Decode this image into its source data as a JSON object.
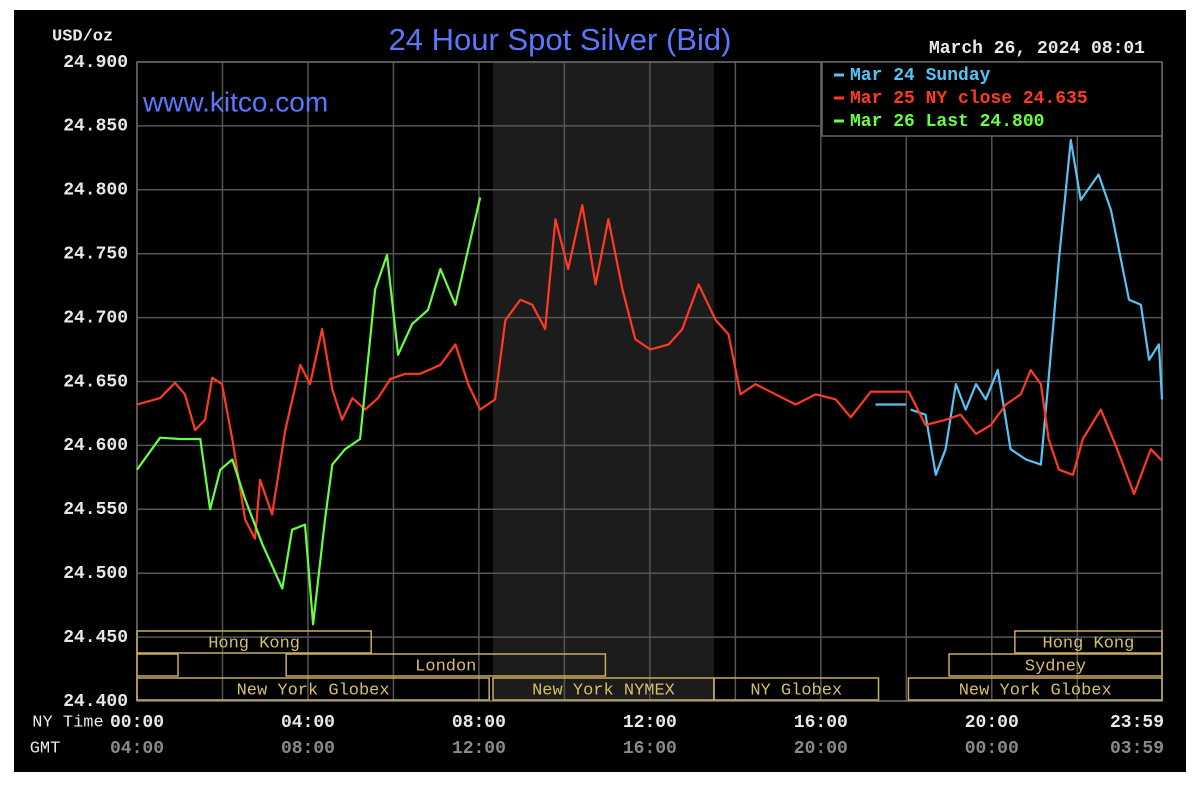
{
  "chart_data": {
    "type": "line",
    "title": "24 Hour Spot Silver (Bid)",
    "watermark": "www.kitco.com",
    "y_label": "USD/oz",
    "timestamp": "March 26, 2024 08:01",
    "x_label": "NY Time",
    "x2_label": "GMT",
    "xlim": [
      0,
      23.983
    ],
    "ylim": [
      24.4,
      24.9
    ],
    "yticks": [
      {
        "value": 24.4,
        "label": "24.400"
      },
      {
        "value": 24.45,
        "label": "24.450"
      },
      {
        "value": 24.5,
        "label": "24.500"
      },
      {
        "value": 24.55,
        "label": "24.550"
      },
      {
        "value": 24.6,
        "label": "24.600"
      },
      {
        "value": 24.65,
        "label": "24.650"
      },
      {
        "value": 24.7,
        "label": "24.700"
      },
      {
        "value": 24.75,
        "label": "24.750"
      },
      {
        "value": 24.8,
        "label": "24.800"
      },
      {
        "value": 24.85,
        "label": "24.850"
      },
      {
        "value": 24.9,
        "label": "24.900"
      }
    ],
    "xticks": [
      {
        "value": 0,
        "label": "00:00"
      },
      {
        "value": 4,
        "label": "04:00"
      },
      {
        "value": 8,
        "label": "08:00"
      },
      {
        "value": 12,
        "label": "12:00"
      },
      {
        "value": 16,
        "label": "16:00"
      },
      {
        "value": 20,
        "label": "20:00"
      },
      {
        "value": 23.983,
        "label": "23:59"
      }
    ],
    "x2_labels": [
      "04:00",
      "08:00",
      "12:00",
      "16:00",
      "20:00",
      "00:00",
      "03:59"
    ],
    "xgrid": [
      2,
      6,
      10,
      14,
      18,
      22
    ],
    "grid": true,
    "shaded_region": [
      8.33,
      13.5
    ],
    "legend": "top-right",
    "sessions": [
      {
        "label": "Hong Kong",
        "start": 0,
        "end": 5.48,
        "row": 0
      },
      {
        "label": "Hong Kong",
        "start": 20.54,
        "end": 23.983,
        "row": 0
      },
      {
        "label": null,
        "start": 0,
        "end": 0.96,
        "row": 1
      },
      {
        "label": "London",
        "start": 3.49,
        "end": 10.96,
        "row": 1
      },
      {
        "label": "Sydney",
        "start": 19.0,
        "end": 23.983,
        "row": 1
      },
      {
        "label": "New York Globex",
        "start": 0,
        "end": 8.24,
        "row": 2
      },
      {
        "label": "New York NYMEX",
        "start": 8.33,
        "end": 13.5,
        "row": 2
      },
      {
        "label": "NY Globex",
        "start": 13.5,
        "end": 17.35,
        "row": 2
      },
      {
        "label": "New York Globex",
        "start": 18.05,
        "end": 23.983,
        "row": 2
      }
    ],
    "series": [
      {
        "name": "Mar 24 Sunday",
        "color": "#55c4f5",
        "x": [
          17.28,
          17.99,
          18.0,
          18.1,
          18.45,
          18.69,
          18.92,
          19.16,
          19.39,
          19.63,
          19.86,
          20.14,
          20.44,
          20.8,
          21.15,
          21.33,
          21.57,
          21.85,
          22.08,
          22.5,
          22.79,
          23.21,
          23.49,
          23.68,
          23.91,
          23.983
        ],
        "values": [
          24.632,
          24.632,
          null,
          24.628,
          24.624,
          24.577,
          24.597,
          24.648,
          24.628,
          24.648,
          24.636,
          24.659,
          24.597,
          24.589,
          24.585,
          24.652,
          24.745,
          24.839,
          24.792,
          24.812,
          24.784,
          24.714,
          24.71,
          24.667,
          24.679,
          24.636
        ]
      },
      {
        "name": "Mar 25 NY close 24.635",
        "color": "#ff3a22",
        "x": [
          0,
          0.54,
          0.89,
          1.12,
          1.36,
          1.59,
          1.76,
          1.99,
          2.23,
          2.53,
          2.76,
          2.88,
          3.16,
          3.47,
          3.82,
          4.05,
          4.33,
          4.57,
          4.8,
          5.04,
          5.34,
          5.64,
          5.93,
          6.28,
          6.63,
          7.1,
          7.45,
          7.75,
          8.03,
          8.38,
          8.62,
          8.97,
          9.25,
          9.55,
          9.79,
          10.09,
          10.42,
          10.73,
          11.03,
          11.36,
          11.66,
          12.01,
          12.44,
          12.76,
          13.14,
          13.54,
          13.84,
          14.12,
          14.47,
          14.94,
          15.41,
          15.88,
          16.35,
          16.7,
          17.17,
          18.06,
          18.45,
          18.92,
          19.27,
          19.63,
          19.98,
          20.33,
          20.68,
          20.91,
          21.15,
          21.33,
          21.57,
          21.9,
          22.13,
          22.55,
          22.9,
          23.33,
          23.72,
          23.983
        ],
        "values": [
          24.632,
          24.637,
          24.649,
          24.64,
          24.612,
          24.62,
          24.653,
          24.648,
          24.605,
          24.542,
          24.527,
          24.573,
          24.546,
          24.612,
          24.663,
          24.648,
          24.691,
          24.644,
          24.62,
          24.637,
          24.628,
          24.637,
          24.652,
          24.656,
          24.656,
          24.663,
          24.679,
          24.648,
          24.628,
          24.636,
          24.698,
          24.714,
          24.71,
          24.691,
          24.777,
          24.738,
          24.788,
          24.726,
          24.777,
          24.722,
          24.683,
          24.675,
          24.679,
          24.691,
          24.726,
          24.698,
          24.687,
          24.64,
          24.648,
          24.64,
          24.632,
          24.64,
          24.636,
          24.622,
          24.642,
          24.642,
          24.616,
          24.62,
          24.624,
          24.609,
          24.616,
          24.632,
          24.64,
          24.659,
          24.648,
          24.605,
          24.581,
          24.577,
          24.605,
          24.628,
          24.6,
          24.562,
          24.597,
          24.588
        ]
      },
      {
        "name": "Mar 26 Last 24.800",
        "color": "#66ff44",
        "x": [
          0,
          0.54,
          1.01,
          1.48,
          1.71,
          1.95,
          2.23,
          2.53,
          2.93,
          3.4,
          3.63,
          3.93,
          4.12,
          4.4,
          4.57,
          4.87,
          5.22,
          5.57,
          5.85,
          6.11,
          6.44,
          6.81,
          7.1,
          7.45,
          7.8,
          8.03
        ],
        "values": [
          24.581,
          24.606,
          24.605,
          24.605,
          24.55,
          24.581,
          24.589,
          24.558,
          24.523,
          24.488,
          24.534,
          24.538,
          24.46,
          24.542,
          24.585,
          24.597,
          24.605,
          24.722,
          24.749,
          24.671,
          24.695,
          24.706,
          24.738,
          24.71,
          24.761,
          24.794
        ]
      }
    ]
  }
}
